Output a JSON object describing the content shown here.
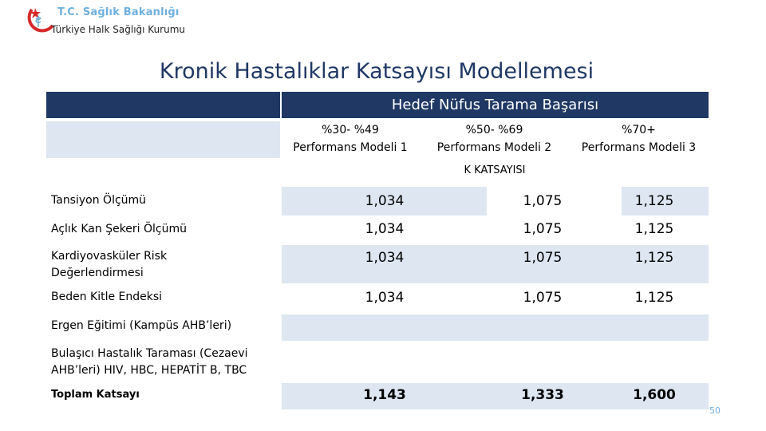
{
  "header": {
    "org_title": "T.C. Sağlık Bakanlığı",
    "org_subtitle": "Türkiye Halk Sağlığı Kurumu"
  },
  "title": "Kronik Hastalıklar Katsayısı Modellemesi",
  "table": {
    "group_header": "Hedef Nüfus Tarama  Başarısı",
    "columns": [
      {
        "range": "%30- %49",
        "model": "Performans Modeli 1"
      },
      {
        "range": "%50- %69",
        "model": "Performans Modeli 2"
      },
      {
        "range": "%70+",
        "model": "Performans Modeli 3"
      }
    ],
    "k_label": "K  KATSAYISI",
    "rows": [
      {
        "label": "Tansiyon Ölçümü",
        "values": [
          "1,034",
          "1,075",
          "1,125"
        ]
      },
      {
        "label": "Açlık Kan Şekeri Ölçümü",
        "values": [
          "1,034",
          "1,075",
          "1,125"
        ]
      },
      {
        "label_line1": "Kardiyovasküler Risk",
        "label_line2": "Değerlendirmesi",
        "values": [
          "1,034",
          "1,075",
          "1,125"
        ]
      },
      {
        "label": "Beden Kitle Endeksi",
        "values": [
          "1,034",
          "1,075",
          "1,125"
        ]
      },
      {
        "label": "Ergen Eğitimi  (Kampüs AHB’leri)"
      },
      {
        "label_line1": "Bulaşıcı Hastalık Taraması (Cezaevi",
        "label_line2": "AHB’leri) HIV, HBC, HEPATİT B, TBC"
      },
      {
        "label": "Toplam Katsayı",
        "values": [
          "1,143",
          "1,333",
          "1,600"
        ]
      }
    ]
  },
  "page_number": "50"
}
